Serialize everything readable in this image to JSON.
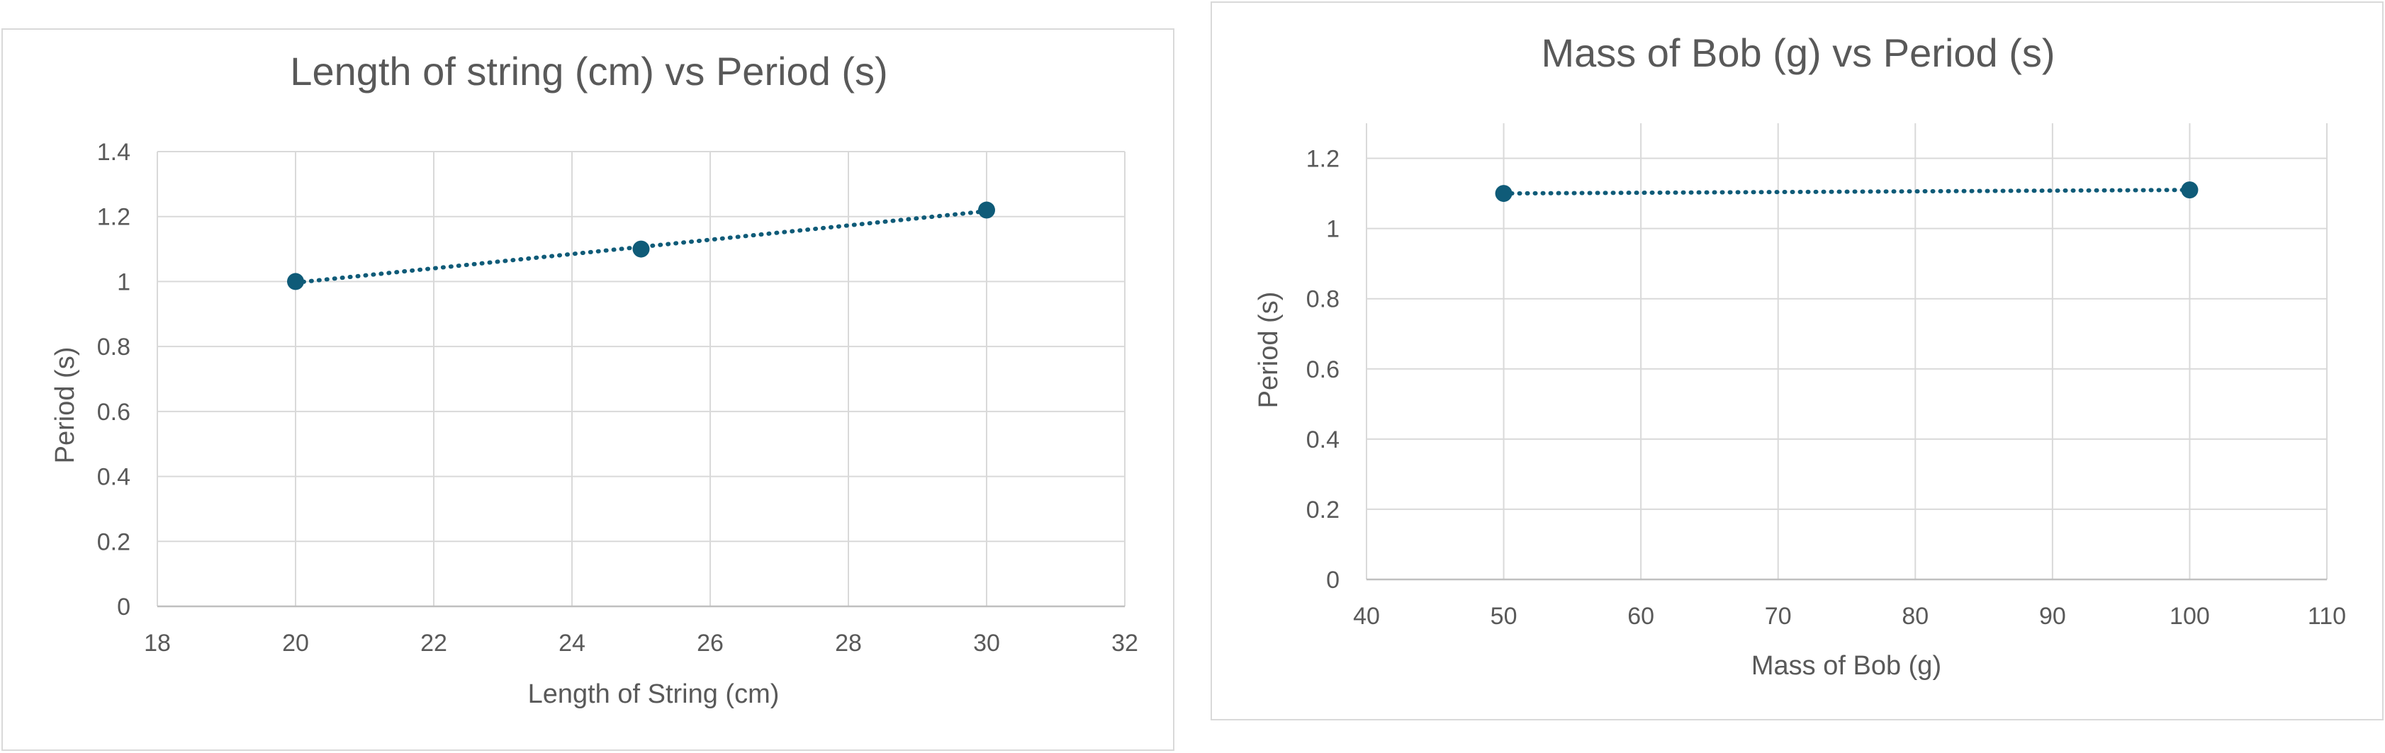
{
  "chart_data": [
    {
      "type": "scatter",
      "title": "Length of string (cm) vs Period (s)",
      "xlabel": "Length of String (cm)",
      "ylabel": "Period (s)",
      "xlim": [
        18,
        32
      ],
      "ylim": [
        0,
        1.4
      ],
      "x_ticks": [
        "18",
        "20",
        "22",
        "24",
        "26",
        "28",
        "30",
        "32"
      ],
      "y_ticks": [
        "0",
        "0.2",
        "0.4",
        "0.6",
        "0.8",
        "1",
        "1.2",
        "1.4"
      ],
      "series": [
        {
          "x": [
            20,
            25,
            30
          ],
          "y": [
            1.0,
            1.1,
            1.22
          ]
        }
      ],
      "trendline": "linear, dotted",
      "grid": true,
      "color": "#0f5b78"
    },
    {
      "type": "scatter",
      "title": "Mass of Bob (g) vs Period (s)",
      "xlabel": "Mass of Bob (g)",
      "ylabel": "Period (s)",
      "xlim": [
        40,
        110
      ],
      "ylim": [
        0,
        1.3
      ],
      "x_ticks": [
        "40",
        "50",
        "60",
        "70",
        "80",
        "90",
        "100",
        "110"
      ],
      "y_ticks": [
        "0",
        "0.2",
        "0.4",
        "0.6",
        "0.8",
        "1",
        "1.2"
      ],
      "series": [
        {
          "x": [
            50,
            100
          ],
          "y": [
            1.1,
            1.11
          ]
        }
      ],
      "trendline": "linear, dotted",
      "grid": true,
      "color": "#0f5b78"
    }
  ]
}
